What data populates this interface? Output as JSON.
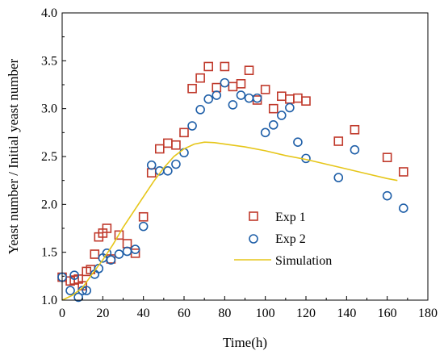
{
  "chart_data": {
    "type": "scatter",
    "xlabel": "Time(h)",
    "ylabel": "Yeast number / Initial yeast number",
    "xlim": [
      0,
      180
    ],
    "ylim": [
      1.0,
      4.0
    ],
    "xticks": [
      "0",
      "20",
      "40",
      "60",
      "80",
      "100",
      "120",
      "140",
      "160",
      "180"
    ],
    "yticks": [
      "1.0",
      "1.5",
      "2.0",
      "2.5",
      "3.0",
      "3.5",
      "4.0"
    ],
    "legend_position": "center-right",
    "series": [
      {
        "name": "Exp 1",
        "marker": "square",
        "color": "#c0392b",
        "points": [
          [
            0,
            1.24
          ],
          [
            4,
            1.2
          ],
          [
            6,
            1.21
          ],
          [
            8,
            1.22
          ],
          [
            10,
            1.15
          ],
          [
            12,
            1.3
          ],
          [
            14,
            1.32
          ],
          [
            16,
            1.48
          ],
          [
            18,
            1.66
          ],
          [
            20,
            1.7
          ],
          [
            22,
            1.75
          ],
          [
            24,
            1.43
          ],
          [
            28,
            1.68
          ],
          [
            32,
            1.59
          ],
          [
            36,
            1.49
          ],
          [
            40,
            1.87
          ],
          [
            44,
            2.33
          ],
          [
            48,
            2.58
          ],
          [
            52,
            2.64
          ],
          [
            56,
            2.62
          ],
          [
            60,
            2.75
          ],
          [
            64,
            3.21
          ],
          [
            68,
            3.32
          ],
          [
            72,
            3.44
          ],
          [
            76,
            3.22
          ],
          [
            80,
            3.44
          ],
          [
            84,
            3.23
          ],
          [
            88,
            3.26
          ],
          [
            92,
            3.4
          ],
          [
            96,
            3.09
          ],
          [
            100,
            3.2
          ],
          [
            104,
            3.0
          ],
          [
            108,
            3.13
          ],
          [
            112,
            3.1
          ],
          [
            116,
            3.11
          ],
          [
            120,
            3.08
          ],
          [
            136,
            2.66
          ],
          [
            144,
            2.78
          ],
          [
            160,
            2.49
          ],
          [
            168,
            2.34
          ]
        ]
      },
      {
        "name": "Exp 2",
        "marker": "circle",
        "color": "#1f5fa8",
        "points": [
          [
            0,
            1.24
          ],
          [
            4,
            1.1
          ],
          [
            6,
            1.26
          ],
          [
            8,
            1.03
          ],
          [
            10,
            1.1
          ],
          [
            12,
            1.1
          ],
          [
            16,
            1.27
          ],
          [
            18,
            1.33
          ],
          [
            20,
            1.44
          ],
          [
            22,
            1.49
          ],
          [
            24,
            1.42
          ],
          [
            28,
            1.48
          ],
          [
            32,
            1.51
          ],
          [
            36,
            1.53
          ],
          [
            40,
            1.77
          ],
          [
            44,
            2.41
          ],
          [
            48,
            2.35
          ],
          [
            52,
            2.35
          ],
          [
            56,
            2.42
          ],
          [
            60,
            2.54
          ],
          [
            64,
            2.82
          ],
          [
            68,
            2.99
          ],
          [
            72,
            3.1
          ],
          [
            76,
            3.14
          ],
          [
            80,
            3.27
          ],
          [
            84,
            3.04
          ],
          [
            88,
            3.14
          ],
          [
            92,
            3.11
          ],
          [
            96,
            3.11
          ],
          [
            100,
            2.75
          ],
          [
            104,
            2.83
          ],
          [
            108,
            2.93
          ],
          [
            112,
            3.01
          ],
          [
            116,
            2.65
          ],
          [
            120,
            2.48
          ],
          [
            136,
            2.28
          ],
          [
            144,
            2.57
          ],
          [
            160,
            2.09
          ],
          [
            168,
            1.96
          ]
        ]
      },
      {
        "name": "Simulation",
        "marker": "line",
        "color": "#e6c619",
        "points": [
          [
            0,
            1.0
          ],
          [
            5,
            1.05
          ],
          [
            10,
            1.13
          ],
          [
            15,
            1.28
          ],
          [
            20,
            1.42
          ],
          [
            25,
            1.58
          ],
          [
            30,
            1.76
          ],
          [
            35,
            1.92
          ],
          [
            40,
            2.08
          ],
          [
            45,
            2.24
          ],
          [
            50,
            2.38
          ],
          [
            55,
            2.5
          ],
          [
            60,
            2.58
          ],
          [
            65,
            2.63
          ],
          [
            70,
            2.65
          ],
          [
            75,
            2.645
          ],
          [
            80,
            2.63
          ],
          [
            90,
            2.6
          ],
          [
            100,
            2.56
          ],
          [
            110,
            2.51
          ],
          [
            120,
            2.47
          ],
          [
            130,
            2.42
          ],
          [
            140,
            2.37
          ],
          [
            150,
            2.32
          ],
          [
            160,
            2.27
          ],
          [
            165,
            2.25
          ]
        ]
      }
    ]
  }
}
